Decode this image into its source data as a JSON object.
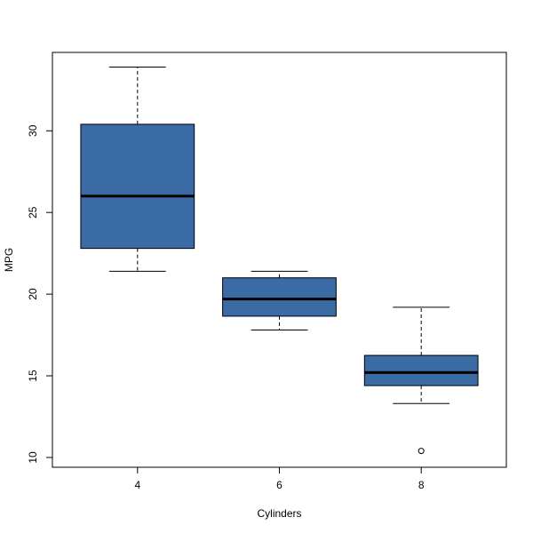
{
  "chart_data": {
    "type": "boxplot",
    "title": "",
    "xlabel": "Cylinders",
    "ylabel": "MPG",
    "categories": [
      "4",
      "6",
      "8"
    ],
    "ylim": [
      9.4,
      34.8
    ],
    "yticks": [
      10,
      15,
      20,
      25,
      30
    ],
    "boxes": [
      {
        "category": "4",
        "whisker_low": 21.4,
        "q1": 22.8,
        "median": 26.0,
        "q3": 30.4,
        "whisker_high": 33.9,
        "outliers": []
      },
      {
        "category": "6",
        "whisker_low": 17.8,
        "q1": 18.65,
        "median": 19.7,
        "q3": 21.0,
        "whisker_high": 21.4,
        "outliers": []
      },
      {
        "category": "8",
        "whisker_low": 13.3,
        "q1": 14.4,
        "median": 15.2,
        "q3": 16.25,
        "whisker_high": 19.2,
        "outliers": [
          10.4
        ]
      }
    ],
    "box_color": "#3A6BA5",
    "grid": false,
    "legend": "none"
  }
}
